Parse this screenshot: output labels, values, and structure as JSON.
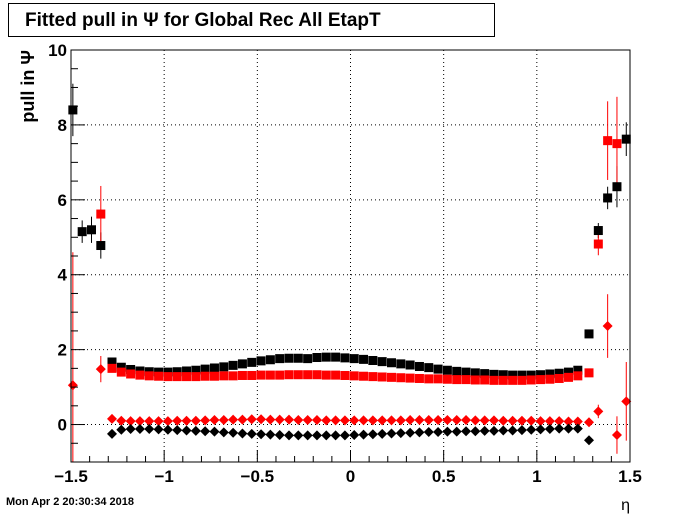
{
  "title": "Fitted pull in  Ψ  for Global Rec All EtapT",
  "timestamp": "Mon Apr  2 20:30:34 2018",
  "chart_data": {
    "type": "scatter",
    "title": "Fitted pull in  Ψ  for Global Rec All EtapT",
    "xlabel": "η",
    "ylabel": "pull in  Ψ",
    "xlim": [
      -1.5,
      1.5
    ],
    "ylim": [
      -1,
      10
    ],
    "grid": true,
    "x_ticks": [
      {
        "v": -1.5,
        "t": "−1.5"
      },
      {
        "v": -1.0,
        "t": "−1"
      },
      {
        "v": -0.5,
        "t": "−0.5"
      },
      {
        "v": 0.0,
        "t": "0"
      },
      {
        "v": 0.5,
        "t": "0.5"
      },
      {
        "v": 1.0,
        "t": "1"
      },
      {
        "v": 1.5,
        "t": "1.5"
      }
    ],
    "y_ticks": [
      {
        "v": 0,
        "t": "0"
      },
      {
        "v": 2,
        "t": "2"
      },
      {
        "v": 4,
        "t": "4"
      },
      {
        "v": 6,
        "t": "6"
      },
      {
        "v": 8,
        "t": "8"
      },
      {
        "v": 10,
        "t": "10"
      }
    ],
    "series": [
      {
        "color": "#000000",
        "marker": "square",
        "points": [
          {
            "x": -1.49,
            "y": 8.4,
            "err": 0.7
          },
          {
            "x": -1.44,
            "y": 5.15,
            "err": 0.3
          },
          {
            "x": -1.39,
            "y": 5.2,
            "err": 0.35
          },
          {
            "x": -1.34,
            "y": 4.78,
            "err": 0.35
          },
          {
            "x": -1.28,
            "y": 1.67,
            "err": 0.08
          },
          {
            "x": -1.23,
            "y": 1.53
          },
          {
            "x": -1.18,
            "y": 1.47
          },
          {
            "x": -1.13,
            "y": 1.43
          },
          {
            "x": -1.08,
            "y": 1.41
          },
          {
            "x": -1.03,
            "y": 1.4
          },
          {
            "x": -0.98,
            "y": 1.4
          },
          {
            "x": -0.93,
            "y": 1.41
          },
          {
            "x": -0.88,
            "y": 1.43
          },
          {
            "x": -0.83,
            "y": 1.45
          },
          {
            "x": -0.78,
            "y": 1.48
          },
          {
            "x": -0.73,
            "y": 1.51
          },
          {
            "x": -0.68,
            "y": 1.54
          },
          {
            "x": -0.63,
            "y": 1.58
          },
          {
            "x": -0.58,
            "y": 1.62
          },
          {
            "x": -0.53,
            "y": 1.66
          },
          {
            "x": -0.48,
            "y": 1.7
          },
          {
            "x": -0.43,
            "y": 1.73
          },
          {
            "x": -0.38,
            "y": 1.76
          },
          {
            "x": -0.33,
            "y": 1.77
          },
          {
            "x": -0.28,
            "y": 1.77
          },
          {
            "x": -0.23,
            "y": 1.76
          },
          {
            "x": -0.18,
            "y": 1.79
          },
          {
            "x": -0.13,
            "y": 1.8
          },
          {
            "x": -0.08,
            "y": 1.8
          },
          {
            "x": -0.03,
            "y": 1.78
          },
          {
            "x": 0.02,
            "y": 1.76
          },
          {
            "x": 0.07,
            "y": 1.74
          },
          {
            "x": 0.12,
            "y": 1.71
          },
          {
            "x": 0.17,
            "y": 1.68
          },
          {
            "x": 0.22,
            "y": 1.65
          },
          {
            "x": 0.27,
            "y": 1.62
          },
          {
            "x": 0.32,
            "y": 1.59
          },
          {
            "x": 0.37,
            "y": 1.55
          },
          {
            "x": 0.42,
            "y": 1.52
          },
          {
            "x": 0.47,
            "y": 1.48
          },
          {
            "x": 0.52,
            "y": 1.45
          },
          {
            "x": 0.57,
            "y": 1.42
          },
          {
            "x": 0.62,
            "y": 1.4
          },
          {
            "x": 0.67,
            "y": 1.38
          },
          {
            "x": 0.72,
            "y": 1.36
          },
          {
            "x": 0.77,
            "y": 1.34
          },
          {
            "x": 0.82,
            "y": 1.33
          },
          {
            "x": 0.87,
            "y": 1.32
          },
          {
            "x": 0.92,
            "y": 1.32
          },
          {
            "x": 0.97,
            "y": 1.32
          },
          {
            "x": 1.02,
            "y": 1.33
          },
          {
            "x": 1.07,
            "y": 1.35
          },
          {
            "x": 1.12,
            "y": 1.37
          },
          {
            "x": 1.17,
            "y": 1.4
          },
          {
            "x": 1.22,
            "y": 1.45
          },
          {
            "x": 1.28,
            "y": 2.42,
            "err": 0.1
          },
          {
            "x": 1.33,
            "y": 5.18,
            "err": 0.2
          },
          {
            "x": 1.38,
            "y": 6.05,
            "err": 0.3
          },
          {
            "x": 1.43,
            "y": 6.35,
            "err": 0.55
          },
          {
            "x": 1.48,
            "y": 7.62,
            "err": 0.45
          }
        ]
      },
      {
        "color": "#ff0000",
        "marker": "square",
        "points": [
          {
            "x": -1.34,
            "y": 5.62,
            "err": 0.75
          },
          {
            "x": -1.28,
            "y": 1.5,
            "err": 0.06
          },
          {
            "x": -1.23,
            "y": 1.4
          },
          {
            "x": -1.18,
            "y": 1.35
          },
          {
            "x": -1.13,
            "y": 1.32
          },
          {
            "x": -1.08,
            "y": 1.3
          },
          {
            "x": -1.03,
            "y": 1.29
          },
          {
            "x": -0.98,
            "y": 1.28
          },
          {
            "x": -0.93,
            "y": 1.28
          },
          {
            "x": -0.88,
            "y": 1.28
          },
          {
            "x": -0.83,
            "y": 1.28
          },
          {
            "x": -0.78,
            "y": 1.29
          },
          {
            "x": -0.73,
            "y": 1.29
          },
          {
            "x": -0.68,
            "y": 1.3
          },
          {
            "x": -0.63,
            "y": 1.3
          },
          {
            "x": -0.58,
            "y": 1.31
          },
          {
            "x": -0.53,
            "y": 1.31
          },
          {
            "x": -0.48,
            "y": 1.32
          },
          {
            "x": -0.43,
            "y": 1.32
          },
          {
            "x": -0.38,
            "y": 1.32
          },
          {
            "x": -0.33,
            "y": 1.33
          },
          {
            "x": -0.28,
            "y": 1.33
          },
          {
            "x": -0.23,
            "y": 1.33
          },
          {
            "x": -0.18,
            "y": 1.33
          },
          {
            "x": -0.13,
            "y": 1.32
          },
          {
            "x": -0.08,
            "y": 1.32
          },
          {
            "x": -0.03,
            "y": 1.31
          },
          {
            "x": 0.02,
            "y": 1.3
          },
          {
            "x": 0.07,
            "y": 1.29
          },
          {
            "x": 0.12,
            "y": 1.28
          },
          {
            "x": 0.17,
            "y": 1.27
          },
          {
            "x": 0.22,
            "y": 1.26
          },
          {
            "x": 0.27,
            "y": 1.25
          },
          {
            "x": 0.32,
            "y": 1.24
          },
          {
            "x": 0.37,
            "y": 1.23
          },
          {
            "x": 0.42,
            "y": 1.22
          },
          {
            "x": 0.47,
            "y": 1.22
          },
          {
            "x": 0.52,
            "y": 1.21
          },
          {
            "x": 0.57,
            "y": 1.2
          },
          {
            "x": 0.62,
            "y": 1.2
          },
          {
            "x": 0.67,
            "y": 1.19
          },
          {
            "x": 0.72,
            "y": 1.19
          },
          {
            "x": 0.77,
            "y": 1.18
          },
          {
            "x": 0.82,
            "y": 1.18
          },
          {
            "x": 0.87,
            "y": 1.18
          },
          {
            "x": 0.92,
            "y": 1.18
          },
          {
            "x": 0.97,
            "y": 1.19
          },
          {
            "x": 1.02,
            "y": 1.2
          },
          {
            "x": 1.07,
            "y": 1.21
          },
          {
            "x": 1.12,
            "y": 1.23
          },
          {
            "x": 1.17,
            "y": 1.26
          },
          {
            "x": 1.22,
            "y": 1.3
          },
          {
            "x": 1.28,
            "y": 1.38,
            "err": 0.06
          },
          {
            "x": 1.33,
            "y": 4.82,
            "err": 0.3
          },
          {
            "x": 1.38,
            "y": 7.58,
            "err": 1.05
          },
          {
            "x": 1.43,
            "y": 7.5,
            "err": 1.25
          }
        ]
      },
      {
        "color": "#ff0000",
        "marker": "diamond",
        "points": [
          {
            "x": -1.49,
            "y": 1.05,
            "err": 3.55
          },
          {
            "x": -1.34,
            "y": 1.48,
            "err": 0.35
          },
          {
            "x": -1.28,
            "y": 0.15,
            "err": 0.06
          },
          {
            "x": -1.23,
            "y": 0.1
          },
          {
            "x": -1.18,
            "y": 0.09
          },
          {
            "x": -1.13,
            "y": 0.09
          },
          {
            "x": -1.08,
            "y": 0.09
          },
          {
            "x": -1.03,
            "y": 0.09
          },
          {
            "x": -0.98,
            "y": 0.09
          },
          {
            "x": -0.93,
            "y": 0.1
          },
          {
            "x": -0.88,
            "y": 0.1
          },
          {
            "x": -0.83,
            "y": 0.1
          },
          {
            "x": -0.78,
            "y": 0.11
          },
          {
            "x": -0.73,
            "y": 0.12
          },
          {
            "x": -0.68,
            "y": 0.12
          },
          {
            "x": -0.63,
            "y": 0.13
          },
          {
            "x": -0.58,
            "y": 0.13
          },
          {
            "x": -0.53,
            "y": 0.14
          },
          {
            "x": -0.48,
            "y": 0.14
          },
          {
            "x": -0.43,
            "y": 0.13
          },
          {
            "x": -0.38,
            "y": 0.13
          },
          {
            "x": -0.33,
            "y": 0.13
          },
          {
            "x": -0.28,
            "y": 0.12
          },
          {
            "x": -0.23,
            "y": 0.12
          },
          {
            "x": -0.18,
            "y": 0.12
          },
          {
            "x": -0.13,
            "y": 0.11
          },
          {
            "x": -0.08,
            "y": 0.11
          },
          {
            "x": -0.03,
            "y": 0.11
          },
          {
            "x": 0.02,
            "y": 0.11
          },
          {
            "x": 0.07,
            "y": 0.11
          },
          {
            "x": 0.12,
            "y": 0.11
          },
          {
            "x": 0.17,
            "y": 0.11
          },
          {
            "x": 0.22,
            "y": 0.11
          },
          {
            "x": 0.27,
            "y": 0.11
          },
          {
            "x": 0.32,
            "y": 0.12
          },
          {
            "x": 0.37,
            "y": 0.12
          },
          {
            "x": 0.42,
            "y": 0.12
          },
          {
            "x": 0.47,
            "y": 0.12
          },
          {
            "x": 0.52,
            "y": 0.12
          },
          {
            "x": 0.57,
            "y": 0.12
          },
          {
            "x": 0.62,
            "y": 0.12
          },
          {
            "x": 0.67,
            "y": 0.11
          },
          {
            "x": 0.72,
            "y": 0.11
          },
          {
            "x": 0.77,
            "y": 0.11
          },
          {
            "x": 0.82,
            "y": 0.1
          },
          {
            "x": 0.87,
            "y": 0.1
          },
          {
            "x": 0.92,
            "y": 0.1
          },
          {
            "x": 0.97,
            "y": 0.1
          },
          {
            "x": 1.02,
            "y": 0.09
          },
          {
            "x": 1.07,
            "y": 0.09
          },
          {
            "x": 1.12,
            "y": 0.09
          },
          {
            "x": 1.17,
            "y": 0.08
          },
          {
            "x": 1.22,
            "y": 0.08
          },
          {
            "x": 1.28,
            "y": 0.06,
            "err": 0.06
          },
          {
            "x": 1.33,
            "y": 0.35,
            "err": 0.18
          },
          {
            "x": 1.38,
            "y": 2.63,
            "err": 0.85
          },
          {
            "x": 1.43,
            "y": -0.28,
            "err": 0.5
          },
          {
            "x": 1.48,
            "y": 0.62,
            "err": 1.05
          }
        ]
      },
      {
        "color": "#000000",
        "marker": "diamond",
        "points": [
          {
            "x": -1.28,
            "y": -0.25,
            "err": 0.05
          },
          {
            "x": -1.23,
            "y": -0.14
          },
          {
            "x": -1.18,
            "y": -0.12
          },
          {
            "x": -1.13,
            "y": -0.12
          },
          {
            "x": -1.08,
            "y": -0.12
          },
          {
            "x": -1.03,
            "y": -0.13
          },
          {
            "x": -0.98,
            "y": -0.14
          },
          {
            "x": -0.93,
            "y": -0.15
          },
          {
            "x": -0.88,
            "y": -0.16
          },
          {
            "x": -0.83,
            "y": -0.17
          },
          {
            "x": -0.78,
            "y": -0.18
          },
          {
            "x": -0.73,
            "y": -0.19
          },
          {
            "x": -0.68,
            "y": -0.21
          },
          {
            "x": -0.63,
            "y": -0.22
          },
          {
            "x": -0.58,
            "y": -0.24
          },
          {
            "x": -0.53,
            "y": -0.25
          },
          {
            "x": -0.48,
            "y": -0.26
          },
          {
            "x": -0.43,
            "y": -0.27
          },
          {
            "x": -0.38,
            "y": -0.28
          },
          {
            "x": -0.33,
            "y": -0.29
          },
          {
            "x": -0.28,
            "y": -0.29
          },
          {
            "x": -0.23,
            "y": -0.29
          },
          {
            "x": -0.18,
            "y": -0.29
          },
          {
            "x": -0.13,
            "y": -0.29
          },
          {
            "x": -0.08,
            "y": -0.29
          },
          {
            "x": -0.03,
            "y": -0.29
          },
          {
            "x": 0.02,
            "y": -0.28
          },
          {
            "x": 0.07,
            "y": -0.27
          },
          {
            "x": 0.12,
            "y": -0.26
          },
          {
            "x": 0.17,
            "y": -0.25
          },
          {
            "x": 0.22,
            "y": -0.24
          },
          {
            "x": 0.27,
            "y": -0.23
          },
          {
            "x": 0.32,
            "y": -0.22
          },
          {
            "x": 0.37,
            "y": -0.21
          },
          {
            "x": 0.42,
            "y": -0.2
          },
          {
            "x": 0.47,
            "y": -0.2
          },
          {
            "x": 0.52,
            "y": -0.19
          },
          {
            "x": 0.57,
            "y": -0.19
          },
          {
            "x": 0.62,
            "y": -0.18
          },
          {
            "x": 0.67,
            "y": -0.18
          },
          {
            "x": 0.72,
            "y": -0.17
          },
          {
            "x": 0.77,
            "y": -0.17
          },
          {
            "x": 0.82,
            "y": -0.16
          },
          {
            "x": 0.87,
            "y": -0.16
          },
          {
            "x": 0.92,
            "y": -0.15
          },
          {
            "x": 0.97,
            "y": -0.14
          },
          {
            "x": 1.02,
            "y": -0.13
          },
          {
            "x": 1.07,
            "y": -0.12
          },
          {
            "x": 1.12,
            "y": -0.11
          },
          {
            "x": 1.17,
            "y": -0.11
          },
          {
            "x": 1.22,
            "y": -0.11
          },
          {
            "x": 1.28,
            "y": -0.42,
            "err": 0.05
          }
        ]
      }
    ]
  }
}
